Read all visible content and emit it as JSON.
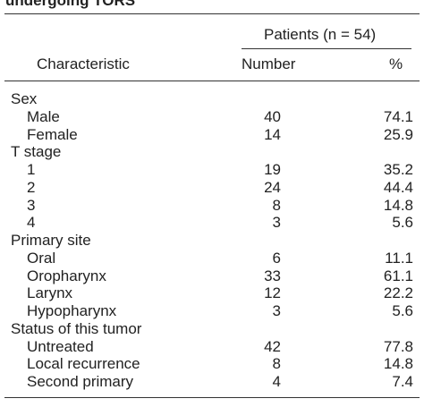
{
  "caption_tail": "undergoing TORS",
  "header": {
    "patients": "Patients (n = 54)",
    "characteristic": "Characteristic",
    "number": "Number",
    "percent": "%"
  },
  "rows": [
    {
      "type": "section",
      "label": "Sex"
    },
    {
      "type": "item",
      "label": "Male",
      "number": "40",
      "percent": "74.1"
    },
    {
      "type": "item",
      "label": "Female",
      "number": "14",
      "percent": "25.9"
    },
    {
      "type": "section",
      "label": "T stage"
    },
    {
      "type": "item",
      "label": "1",
      "number": "19",
      "percent": "35.2"
    },
    {
      "type": "item",
      "label": "2",
      "number": "24",
      "percent": "44.4"
    },
    {
      "type": "item",
      "label": "3",
      "number": "8",
      "percent": "14.8"
    },
    {
      "type": "item",
      "label": "4",
      "number": "3",
      "percent": "5.6"
    },
    {
      "type": "section",
      "label": "Primary site"
    },
    {
      "type": "item",
      "label": "Oral",
      "number": "6",
      "percent": "11.1"
    },
    {
      "type": "item",
      "label": "Oropharynx",
      "number": "33",
      "percent": "61.1"
    },
    {
      "type": "item",
      "label": "Larynx",
      "number": "12",
      "percent": "22.2"
    },
    {
      "type": "item",
      "label": "Hypopharynx",
      "number": "3",
      "percent": "5.6"
    },
    {
      "type": "section",
      "label": "Status of this tumor"
    },
    {
      "type": "item",
      "label": "Untreated",
      "number": "42",
      "percent": "77.8"
    },
    {
      "type": "item",
      "label": "Local recurrence",
      "number": "8",
      "percent": "14.8"
    },
    {
      "type": "item",
      "label": "Second primary",
      "number": "4",
      "percent": "7.4"
    }
  ]
}
